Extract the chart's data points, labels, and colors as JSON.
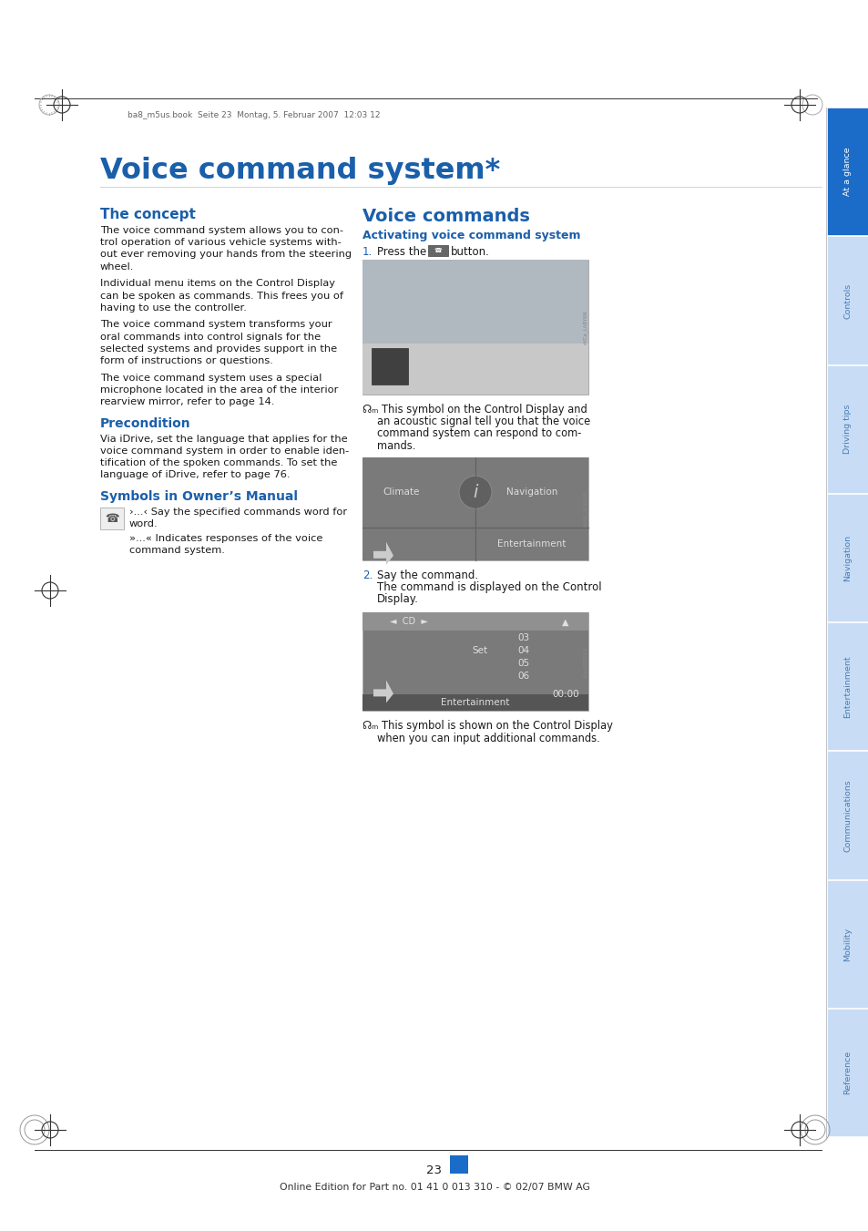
{
  "page_bg": "#ffffff",
  "header_text": "ba8_m5us.book  Seite 23  Montag, 5. Februar 2007  12:03 12",
  "main_title": "Voice command system*",
  "section1_title": "The concept",
  "section1_paras": [
    "The voice command system allows you to con-\ntrol operation of various vehicle systems with-\nout ever removing your hands from the steering\nwheel.",
    "Individual menu items on the Control Display\ncan be spoken as commands. This frees you of\nhaving to use the controller.",
    "The voice command system transforms your\noral commands into control signals for the\nselected systems and provides support in the\nform of instructions or questions.",
    "The voice command system uses a special\nmicrophone located in the area of the interior\nrearview mirror, refer to page 14."
  ],
  "precondition_title": "Precondition",
  "precondition_para": "Via iDrive, set the language that applies for the\nvoice command system in order to enable iden-\ntification of the spoken commands. To set the\nlanguage of iDrive, refer to page 76.",
  "symbols_title": "Symbols in Owner’s Manual",
  "symbols_line1": "›...‹ Say the specified commands word for",
  "symbols_line2": "word.",
  "symbols_line3": "»...« Indicates responses of the voice",
  "symbols_line4": "command system.",
  "section2_title": "Voice commands",
  "activating_title": "Activating voice command system",
  "step1_label": "1.",
  "step1_text": "Press the",
  "step1_suffix": "button.",
  "caption1_lines": [
    "☊ₘ This symbol on the Control Display and",
    "an acoustic signal tell you that the voice",
    "command system can respond to com-",
    "mands."
  ],
  "step2_label": "2.",
  "step2_line1": "Say the command.",
  "step2_line2": "The command is displayed on the Control",
  "step2_line3": "Display.",
  "caption2_lines": [
    "☊ₘ This symbol is shown on the Control Display",
    "when you can input additional commands."
  ],
  "page_number": "23",
  "footer_text": "Online Edition for Part no. 01 41 0 013 310 - © 02/07 BMW AG",
  "sidebar_labels": [
    "At a glance",
    "Controls",
    "Driving tips",
    "Navigation",
    "Entertainment",
    "Communications",
    "Mobility",
    "Reference"
  ],
  "sidebar_active_idx": 0,
  "sidebar_active_color": "#1a6cc8",
  "sidebar_inactive_color": "#c8ddf5",
  "sidebar_text_active": "#ffffff",
  "sidebar_text_inactive": "#4a7bb5",
  "title_color": "#1a5faa",
  "subhead_color": "#1a5faa",
  "body_color": "#1a1a1a",
  "link_color": "#1a5faa",
  "header_color": "#666666",
  "rule_color": "#999999",
  "img1_color": "#c0c0c0",
  "img2_color": "#909090",
  "img3_color": "#888888",
  "img_border": "#aaaaaa"
}
